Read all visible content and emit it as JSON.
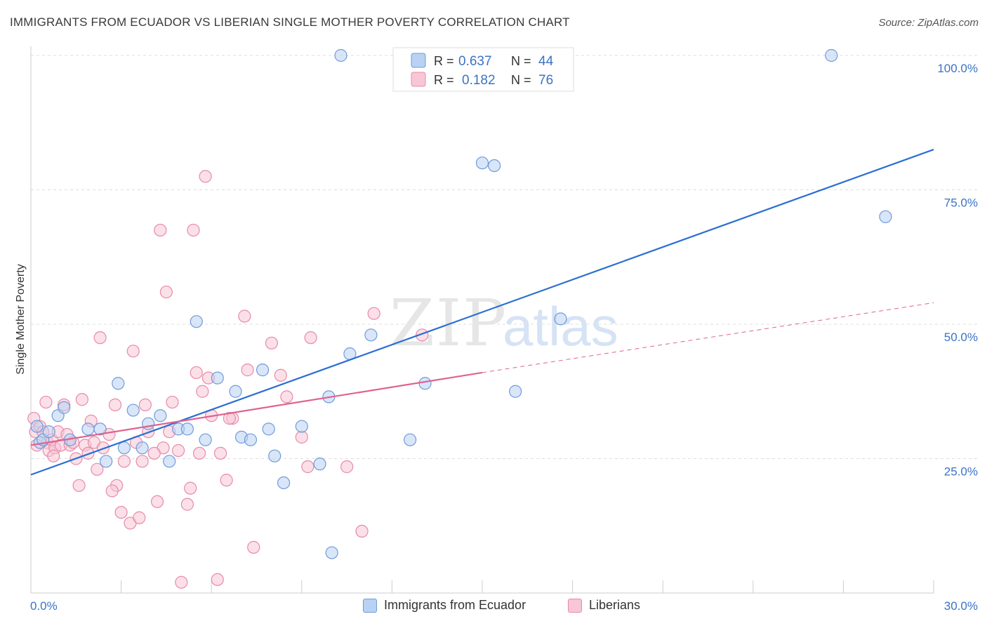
{
  "header": {
    "title": "IMMIGRANTS FROM ECUADOR VS LIBERIAN SINGLE MOTHER POVERTY CORRELATION CHART",
    "source": "Source: ZipAtlas.com"
  },
  "watermark": {
    "zip": "ZIP",
    "atlas": "atlas"
  },
  "colors": {
    "blue_fill": "#b9d1f3",
    "blue_stroke": "#6f9bdb",
    "blue_line": "#2a6fd1",
    "pink_fill": "#f8c6d6",
    "pink_stroke": "#e88aa9",
    "pink_line": "#e0628f",
    "tick_text": "#3b73c4",
    "grid": "#dddddd"
  },
  "legend": {
    "r_label": "R =",
    "n_label": "N =",
    "series1": {
      "r": "0.637",
      "n": "44"
    },
    "series2": {
      "r": "0.182",
      "n": "76"
    }
  },
  "chart_data": {
    "type": "scatter",
    "title": "IMMIGRANTS FROM ECUADOR VS LIBERIAN SINGLE MOTHER POVERTY CORRELATION CHART",
    "xlabel": "",
    "ylabel": "Single Mother Poverty",
    "xlim": [
      0,
      30
    ],
    "ylim": [
      0,
      100
    ],
    "x_tick_labels": [
      "0.0%",
      "30.0%"
    ],
    "y_ticks": [
      25,
      50,
      75,
      100
    ],
    "y_tick_labels": [
      "25.0%",
      "50.0%",
      "75.0%",
      "100.0%"
    ],
    "grid": true,
    "series": [
      {
        "name": "Immigrants from Ecuador",
        "r": 0.637,
        "n": 44,
        "trend": {
          "x0": 0,
          "y0": 22.0,
          "x1": 30,
          "y1": 82.5,
          "dashed_to": null
        },
        "points": [
          [
            0.2,
            31.0
          ],
          [
            0.3,
            28.0
          ],
          [
            0.4,
            28.5
          ],
          [
            0.6,
            30.0
          ],
          [
            0.9,
            33.0
          ],
          [
            1.1,
            34.5
          ],
          [
            1.3,
            28.5
          ],
          [
            1.9,
            30.5
          ],
          [
            2.3,
            30.5
          ],
          [
            2.5,
            24.5
          ],
          [
            2.9,
            39.0
          ],
          [
            3.1,
            27.0
          ],
          [
            3.4,
            34.0
          ],
          [
            3.7,
            27.0
          ],
          [
            3.9,
            31.5
          ],
          [
            4.3,
            33.0
          ],
          [
            4.6,
            24.5
          ],
          [
            4.9,
            30.5
          ],
          [
            5.2,
            30.5
          ],
          [
            5.5,
            50.5
          ],
          [
            5.8,
            28.5
          ],
          [
            6.2,
            40.0
          ],
          [
            6.8,
            37.5
          ],
          [
            7.0,
            29.0
          ],
          [
            7.3,
            28.5
          ],
          [
            7.7,
            41.5
          ],
          [
            7.9,
            30.5
          ],
          [
            8.1,
            25.5
          ],
          [
            8.4,
            20.5
          ],
          [
            9.0,
            31.0
          ],
          [
            9.6,
            24.0
          ],
          [
            9.9,
            36.5
          ],
          [
            10.0,
            7.5
          ],
          [
            10.3,
            100.0
          ],
          [
            10.6,
            44.5
          ],
          [
            11.3,
            48.0
          ],
          [
            12.6,
            28.5
          ],
          [
            13.1,
            39.0
          ],
          [
            15.0,
            80.0
          ],
          [
            15.4,
            79.5
          ],
          [
            16.1,
            37.5
          ],
          [
            17.6,
            51.0
          ],
          [
            26.6,
            100.0
          ],
          [
            28.4,
            70.0
          ]
        ]
      },
      {
        "name": "Liberians",
        "r": 0.182,
        "n": 76,
        "trend": {
          "x0": 0,
          "y0": 27.5,
          "x1": 15.0,
          "y1": 41.0,
          "dashed_to": {
            "x": 30,
            "y": 54.0
          }
        },
        "points": [
          [
            0.1,
            32.5
          ],
          [
            0.15,
            30.0
          ],
          [
            0.2,
            27.5
          ],
          [
            0.3,
            31.0
          ],
          [
            0.4,
            30.0
          ],
          [
            0.5,
            35.5
          ],
          [
            0.55,
            28.0
          ],
          [
            0.6,
            26.5
          ],
          [
            0.7,
            28.5
          ],
          [
            0.8,
            27.0
          ],
          [
            0.9,
            30.0
          ],
          [
            1.0,
            27.5
          ],
          [
            1.1,
            35.0
          ],
          [
            1.2,
            29.5
          ],
          [
            1.3,
            27.5
          ],
          [
            1.5,
            25.0
          ],
          [
            1.6,
            20.0
          ],
          [
            1.7,
            36.0
          ],
          [
            1.8,
            27.5
          ],
          [
            1.9,
            26.0
          ],
          [
            2.0,
            32.0
          ],
          [
            2.1,
            28.0
          ],
          [
            2.2,
            23.0
          ],
          [
            2.3,
            47.5
          ],
          [
            2.4,
            27.0
          ],
          [
            2.6,
            29.5
          ],
          [
            2.8,
            35.0
          ],
          [
            2.85,
            20.0
          ],
          [
            3.0,
            15.0
          ],
          [
            3.1,
            24.5
          ],
          [
            3.3,
            13.0
          ],
          [
            3.4,
            45.0
          ],
          [
            3.5,
            28.0
          ],
          [
            3.6,
            14.0
          ],
          [
            3.7,
            24.5
          ],
          [
            3.8,
            35.0
          ],
          [
            3.9,
            30.0
          ],
          [
            4.2,
            17.0
          ],
          [
            4.3,
            67.5
          ],
          [
            4.4,
            27.0
          ],
          [
            4.5,
            56.0
          ],
          [
            4.6,
            30.0
          ],
          [
            4.7,
            35.5
          ],
          [
            4.9,
            26.5
          ],
          [
            5.0,
            2.0
          ],
          [
            5.2,
            16.5
          ],
          [
            5.3,
            19.5
          ],
          [
            5.4,
            67.5
          ],
          [
            5.5,
            41.0
          ],
          [
            5.6,
            26.0
          ],
          [
            5.7,
            37.5
          ],
          [
            5.8,
            77.5
          ],
          [
            5.9,
            40.0
          ],
          [
            6.0,
            33.0
          ],
          [
            6.2,
            2.5
          ],
          [
            6.3,
            26.0
          ],
          [
            6.5,
            21.0
          ],
          [
            6.7,
            32.5
          ],
          [
            7.1,
            51.5
          ],
          [
            7.2,
            41.5
          ],
          [
            7.4,
            8.5
          ],
          [
            8.0,
            46.5
          ],
          [
            8.3,
            40.5
          ],
          [
            8.5,
            36.5
          ],
          [
            9.0,
            29.0
          ],
          [
            9.2,
            23.5
          ],
          [
            9.3,
            47.5
          ],
          [
            10.5,
            23.5
          ],
          [
            11.0,
            11.5
          ],
          [
            11.4,
            52.0
          ],
          [
            13.0,
            48.0
          ],
          [
            6.6,
            32.5
          ],
          [
            1.4,
            28.0
          ],
          [
            0.75,
            25.5
          ],
          [
            2.7,
            19.0
          ],
          [
            4.1,
            26.0
          ]
        ]
      }
    ]
  }
}
